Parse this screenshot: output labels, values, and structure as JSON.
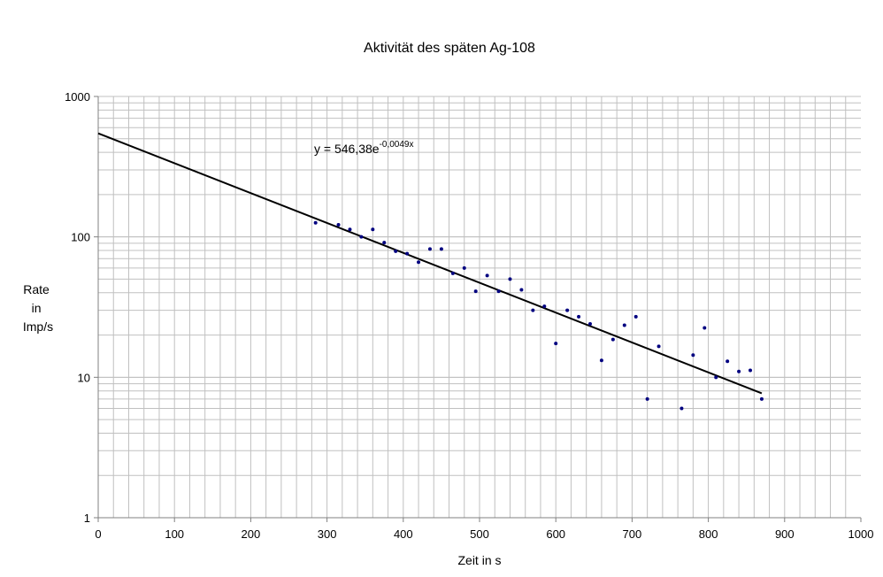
{
  "chart_data": {
    "type": "scatter",
    "title": "Aktivität des späten Ag-108",
    "xlabel": "Zeit in s",
    "ylabel": [
      "Rate",
      "in",
      "Imp/s"
    ],
    "xlim": [
      0,
      1000
    ],
    "ylim": [
      1,
      1000
    ],
    "y_scale": "log",
    "x_ticks": [
      0,
      100,
      200,
      300,
      400,
      500,
      600,
      700,
      800,
      900,
      1000
    ],
    "x_tick_labels": [
      "0",
      "100",
      "200",
      "300",
      "400",
      "500",
      "600",
      "700",
      "800",
      "900",
      "1000"
    ],
    "y_ticks": [
      1,
      10,
      100,
      1000
    ],
    "y_tick_labels": [
      "1",
      "10",
      "100",
      "1000"
    ],
    "grid": true,
    "legend": "none",
    "series": [
      {
        "color": "#000080",
        "marker": "point",
        "x": [
          285,
          315,
          330,
          345,
          360,
          375,
          390,
          405,
          420,
          435,
          450,
          465,
          480,
          495,
          510,
          525,
          540,
          555,
          570,
          585,
          600,
          615,
          630,
          645,
          660,
          675,
          690,
          705,
          720,
          735,
          765,
          780,
          795,
          810,
          825,
          840,
          855,
          870
        ],
        "y": [
          126,
          122,
          113,
          100,
          113,
          91,
          79,
          76,
          66,
          82,
          82,
          55,
          60,
          41,
          53,
          41,
          50,
          42,
          30,
          32,
          17.4,
          30,
          27,
          24,
          13.2,
          18.6,
          23.5,
          27,
          7,
          16.6,
          6,
          14.4,
          22.5,
          10,
          13,
          11,
          11.2,
          7
        ]
      }
    ],
    "trendline": {
      "type": "exponential",
      "a": 546.38,
      "b": -0.0049,
      "x_range": [
        0,
        870
      ],
      "color": "#000000",
      "label_base": "y = 546,38e",
      "label_exp": "-0,0049x"
    }
  }
}
